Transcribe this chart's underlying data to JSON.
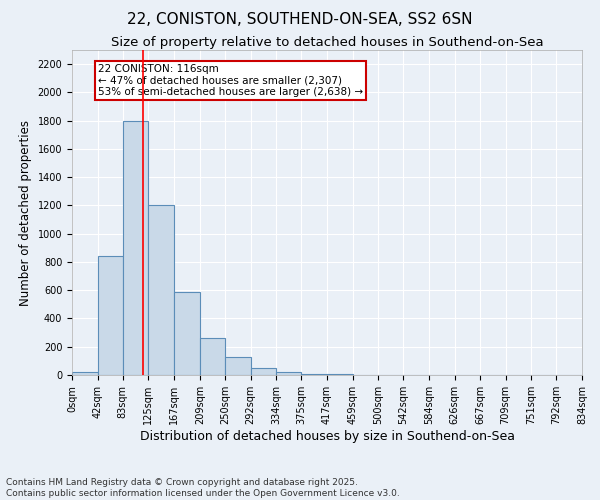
{
  "title1": "22, CONISTON, SOUTHEND-ON-SEA, SS2 6SN",
  "title2": "Size of property relative to detached houses in Southend-on-Sea",
  "xlabel": "Distribution of detached houses by size in Southend-on-Sea",
  "ylabel": "Number of detached properties",
  "bin_edges": [
    0,
    42,
    83,
    125,
    167,
    209,
    250,
    292,
    334,
    375,
    417,
    459,
    500,
    542,
    584,
    626,
    667,
    709,
    751,
    792,
    834
  ],
  "bar_heights": [
    20,
    840,
    1800,
    1200,
    590,
    260,
    130,
    50,
    20,
    10,
    5,
    3,
    2,
    1,
    1,
    1,
    0,
    0,
    0,
    1
  ],
  "bar_color": "#c9d9e8",
  "bar_edge_color": "#5b8db8",
  "red_line_x": 116,
  "ylim": [
    0,
    2300
  ],
  "yticks": [
    0,
    200,
    400,
    600,
    800,
    1000,
    1200,
    1400,
    1600,
    1800,
    2000,
    2200
  ],
  "annotation_text": "22 CONISTON: 116sqm\n← 47% of detached houses are smaller (2,307)\n53% of semi-detached houses are larger (2,638) →",
  "annotation_box_color": "#ffffff",
  "annotation_box_edge_color": "#cc0000",
  "footer_text": "Contains HM Land Registry data © Crown copyright and database right 2025.\nContains public sector information licensed under the Open Government Licence v3.0.",
  "background_color": "#eaf0f7",
  "grid_color": "#ffffff",
  "title1_fontsize": 11,
  "title2_fontsize": 9.5,
  "xlabel_fontsize": 9,
  "ylabel_fontsize": 8.5,
  "tick_label_fontsize": 7,
  "annotation_fontsize": 7.5,
  "footer_fontsize": 6.5
}
